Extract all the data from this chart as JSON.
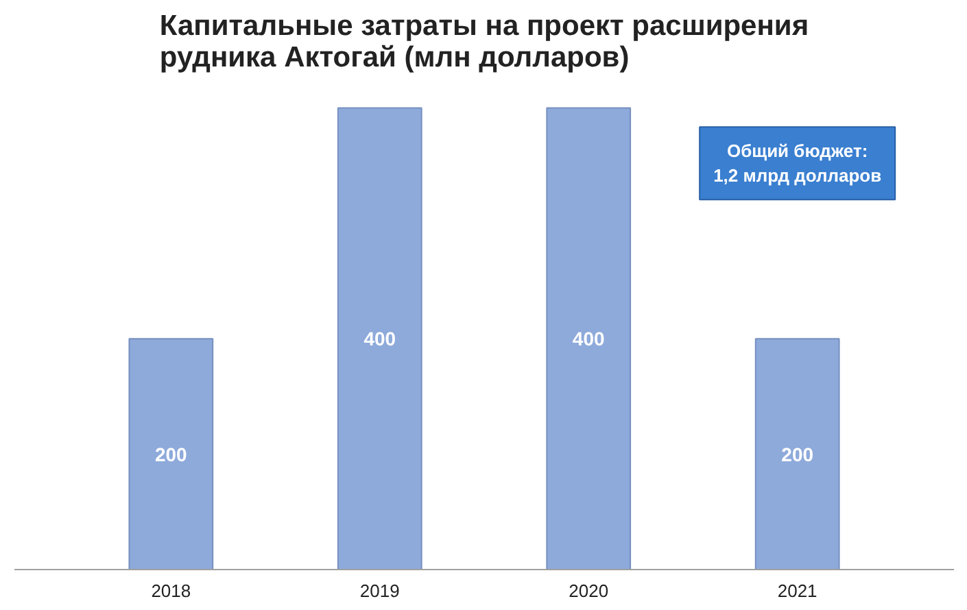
{
  "chart_data": {
    "type": "bar",
    "title": "Капитальные затраты на проект расширения\nрудника Актогай (млн долларов)",
    "categories": [
      "2018",
      "2019",
      "2020",
      "2021"
    ],
    "values": [
      200,
      400,
      400,
      200
    ],
    "color": "#8eaadb",
    "data_labels": true,
    "grid": false,
    "annotations": [
      "Общий бюджет:\n1,2 млрд долларов"
    ]
  }
}
